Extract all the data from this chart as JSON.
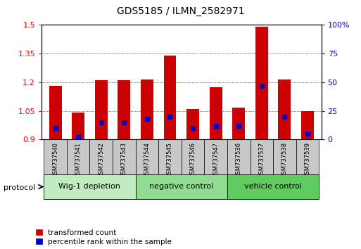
{
  "title": "GDS5185 / ILMN_2582971",
  "samples": [
    "GSM737540",
    "GSM737541",
    "GSM737542",
    "GSM737543",
    "GSM737544",
    "GSM737545",
    "GSM737546",
    "GSM737547",
    "GSM737536",
    "GSM737537",
    "GSM737538",
    "GSM737539"
  ],
  "transformed_count": [
    1.18,
    1.04,
    1.21,
    1.21,
    1.215,
    1.34,
    1.06,
    1.175,
    1.065,
    1.49,
    1.215,
    1.05
  ],
  "percentile_rank": [
    10,
    2,
    15,
    15,
    18,
    20,
    10,
    12,
    12,
    47,
    20,
    5
  ],
  "groups": [
    {
      "label": "Wig-1 depletion",
      "start": 0,
      "end": 4,
      "color": "#c0ecc0"
    },
    {
      "label": "negative control",
      "start": 4,
      "end": 8,
      "color": "#90dc90"
    },
    {
      "label": "vehicle control",
      "start": 8,
      "end": 12,
      "color": "#60cc60"
    }
  ],
  "ylim_left": [
    0.9,
    1.5
  ],
  "ylim_right": [
    0,
    100
  ],
  "yticks_left": [
    0.9,
    1.05,
    1.2,
    1.35,
    1.5
  ],
  "yticks_right": [
    0,
    25,
    50,
    75,
    100
  ],
  "yticklabels_right": [
    "0",
    "25",
    "50",
    "75",
    "100%"
  ],
  "bar_color_red": "#cc0000",
  "bar_color_blue": "#0000cc",
  "bar_width": 0.55,
  "base_value": 0.9,
  "bg_color": "#ffffff",
  "tick_label_bg": "#c8c8c8",
  "legend_red_label": "transformed count",
  "legend_blue_label": "percentile rank within the sample",
  "protocol_label": "protocol"
}
